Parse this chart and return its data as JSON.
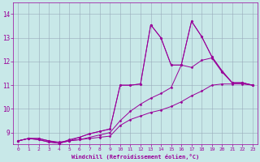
{
  "xlabel": "Windchill (Refroidissement éolien,°C)",
  "xlim": [
    -0.5,
    23.5
  ],
  "ylim": [
    8.5,
    14.5
  ],
  "yticks": [
    9,
    10,
    11,
    12,
    13,
    14
  ],
  "xticks": [
    0,
    1,
    2,
    3,
    4,
    5,
    6,
    7,
    8,
    9,
    10,
    11,
    12,
    13,
    14,
    15,
    16,
    17,
    18,
    19,
    20,
    21,
    22,
    23
  ],
  "bg_color": "#c8e8e8",
  "line_color": "#990099",
  "grid_color": "#99aabb",
  "lines": [
    [
      0,
      8.65,
      1,
      8.75,
      2,
      8.75,
      3,
      8.65,
      4,
      8.6,
      5,
      8.65,
      6,
      8.7,
      7,
      8.75,
      8,
      8.8,
      9,
      8.85,
      10,
      9.3,
      11,
      9.55,
      12,
      9.7,
      13,
      9.85,
      14,
      9.95,
      15,
      10.1,
      16,
      10.3,
      17,
      10.55,
      18,
      10.75,
      19,
      11.0,
      20,
      11.05,
      21,
      11.05,
      22,
      11.05,
      23,
      11.0
    ],
    [
      0,
      8.65,
      1,
      8.75,
      2,
      8.75,
      3,
      8.65,
      4,
      8.55,
      5,
      8.65,
      6,
      8.7,
      7,
      8.8,
      8,
      8.9,
      9,
      9.0,
      10,
      9.5,
      11,
      9.9,
      12,
      10.2,
      13,
      10.45,
      14,
      10.65,
      15,
      10.9,
      16,
      11.85,
      17,
      11.75,
      18,
      12.05,
      19,
      12.15,
      20,
      11.55,
      21,
      11.1,
      22,
      11.1,
      23,
      11.0
    ],
    [
      0,
      8.65,
      1,
      8.75,
      2,
      8.7,
      3,
      8.6,
      4,
      8.55,
      5,
      8.7,
      6,
      8.8,
      7,
      8.95,
      8,
      9.05,
      9,
      9.15,
      10,
      11.0,
      11,
      11.0,
      12,
      11.05,
      13,
      13.55,
      14,
      13.0,
      15,
      11.85,
      16,
      11.85,
      17,
      13.7,
      18,
      13.05,
      19,
      12.2,
      20,
      11.6,
      21,
      11.1,
      22,
      11.1,
      23,
      11.0
    ],
    [
      0,
      8.65,
      1,
      8.75,
      2,
      8.7,
      3,
      8.6,
      4,
      8.55,
      5,
      8.65,
      6,
      8.8,
      7,
      8.95,
      8,
      9.05,
      9,
      9.15,
      10,
      11.0,
      11,
      11.0,
      12,
      11.05,
      13,
      13.55,
      14,
      13.0,
      15,
      11.85,
      16,
      11.85,
      17,
      13.7,
      18,
      13.05,
      19,
      12.2,
      20,
      11.6,
      21,
      11.1,
      22,
      11.1,
      23,
      11.0
    ]
  ]
}
